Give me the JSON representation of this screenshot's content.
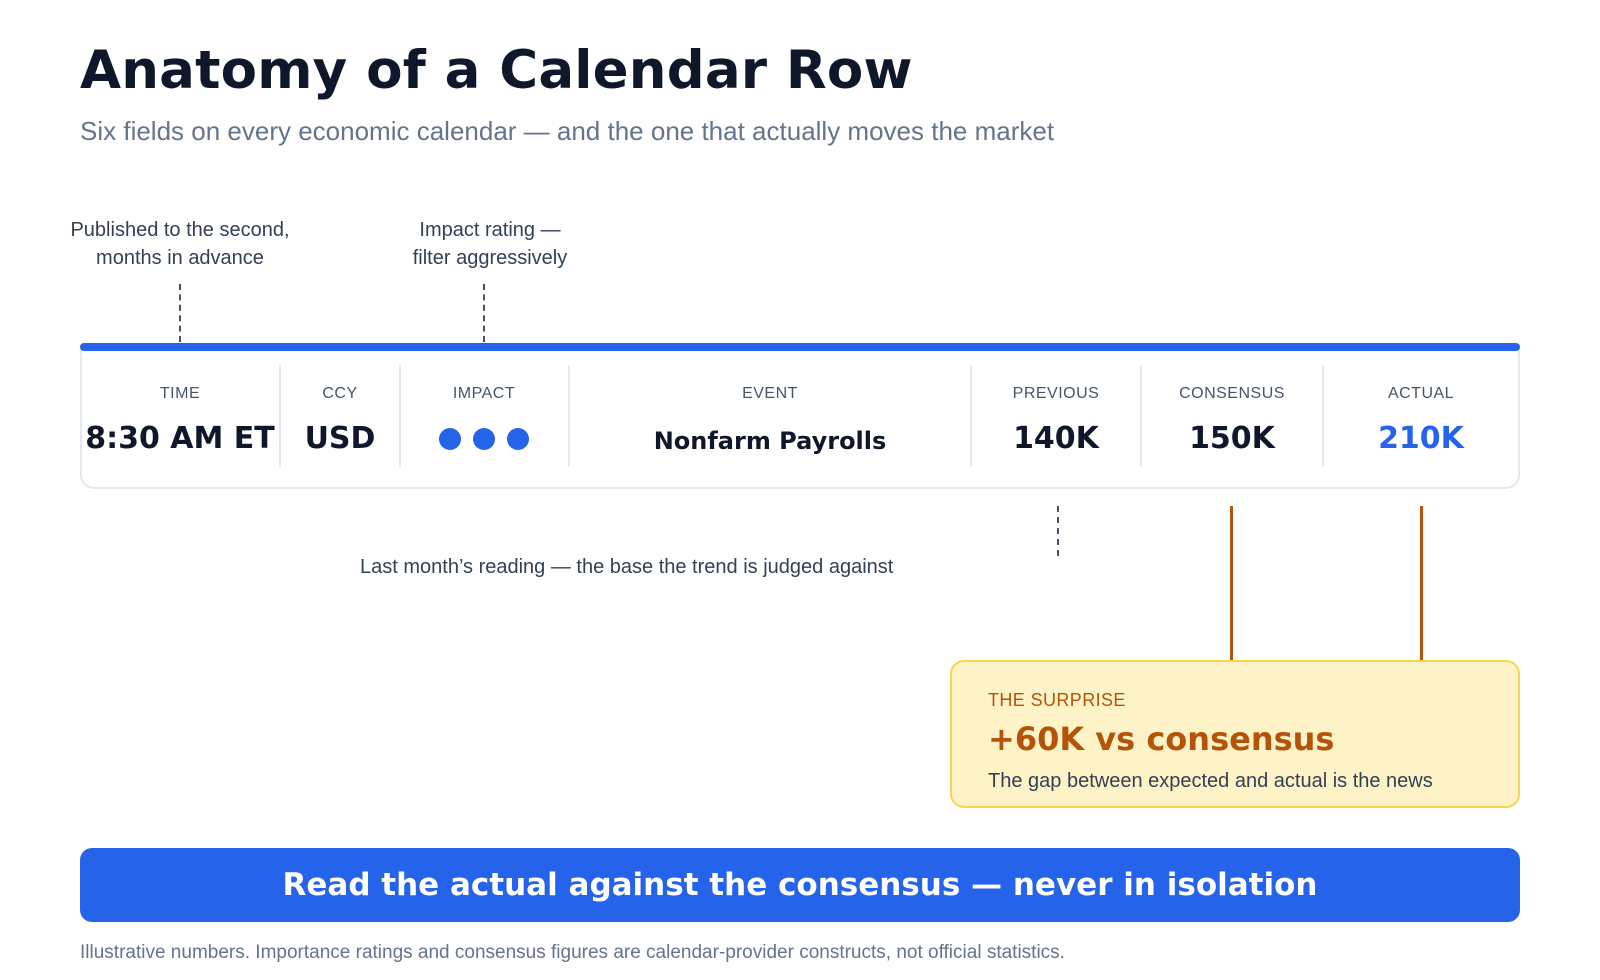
{
  "title": "Anatomy of a Calendar Row",
  "subtitle": "Six fields on every economic calendar — and the one that actually moves the market",
  "callouts": {
    "time_line1": "Published to the second,",
    "time_line2": "months in advance",
    "impact_line1": "Impact rating —",
    "impact_line2": "filter aggressively",
    "previous": "Last month’s reading — the base the trend is judged against"
  },
  "row": {
    "accent_color": "#2563eb",
    "columns": [
      {
        "header": "TIME",
        "value": "8:30 AM ET"
      },
      {
        "header": "CCY",
        "value": "USD"
      },
      {
        "header": "IMPACT",
        "value": 3,
        "max": 3,
        "icon": "impact-dot"
      },
      {
        "header": "EVENT",
        "value": "Nonfarm Payrolls"
      },
      {
        "header": "PREVIOUS",
        "value": "140K"
      },
      {
        "header": "CONSENSUS",
        "value": "150K"
      },
      {
        "header": "ACTUAL",
        "value": "210K",
        "color": "#2563eb"
      }
    ]
  },
  "surprise": {
    "label": "THE SURPRISE",
    "value": "+60K vs consensus",
    "text": "The gap between expected and actual is the news",
    "color": "#b45309",
    "background": "#fef3c7"
  },
  "banner": {
    "text": "Read the actual against the consensus — never in isolation",
    "color": "#2563eb"
  },
  "footnote": "Illustrative numbers. Importance ratings and consensus figures are calendar-provider constructs, not official statistics."
}
